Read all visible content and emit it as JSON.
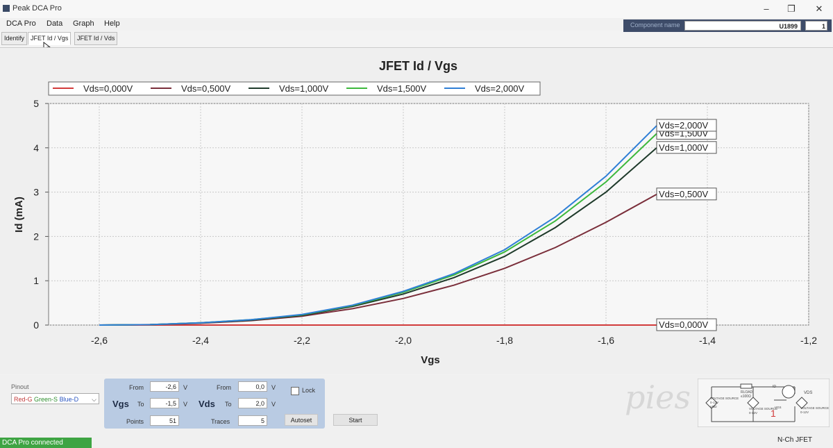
{
  "window": {
    "title": "Peak DCA Pro",
    "minimize": "–",
    "restore": "❐",
    "close": "✕"
  },
  "menu": [
    "DCA Pro",
    "Data",
    "Graph",
    "Help"
  ],
  "tabs": [
    "Identify",
    "JFET Id / Vgs",
    "JFET Id / Vds"
  ],
  "active_tab": 1,
  "component": {
    "label": "Component name",
    "value": "U1899",
    "count": "1"
  },
  "chart_data": {
    "type": "line",
    "title": "JFET Id / Vgs",
    "xlabel": "Vgs",
    "ylabel": "Id (mA)",
    "xlim": [
      -2.7,
      -1.2
    ],
    "ylim": [
      0,
      5
    ],
    "xticks": [
      -2.6,
      -2.4,
      -2.2,
      -2.0,
      -1.8,
      -1.6,
      -1.4,
      -1.2
    ],
    "xtick_labels": [
      "-2,6",
      "-2,4",
      "-2,2",
      "-2,0",
      "-1,8",
      "-1,6",
      "-1,4",
      "-1,2"
    ],
    "yticks": [
      0,
      1,
      2,
      3,
      4,
      5
    ],
    "ytick_labels": [
      "0",
      "1",
      "2",
      "3",
      "4",
      "5"
    ],
    "grid": true,
    "legend_position": "top",
    "x": [
      -2.6,
      -2.5,
      -2.4,
      -2.3,
      -2.2,
      -2.1,
      -2.0,
      -1.9,
      -1.8,
      -1.7,
      -1.6,
      -1.5
    ],
    "series": [
      {
        "name": "Vds=0,000V",
        "color": "#d23b3b",
        "values": [
          0,
          0,
          0,
          0,
          0,
          0,
          0,
          0,
          0,
          0,
          0,
          0
        ]
      },
      {
        "name": "Vds=0,500V",
        "color": "#7a2e3a",
        "values": [
          0,
          0.01,
          0.04,
          0.1,
          0.2,
          0.37,
          0.6,
          0.9,
          1.28,
          1.75,
          2.32,
          2.95
        ]
      },
      {
        "name": "Vds=1,000V",
        "color": "#1e3a2a",
        "values": [
          0,
          0.01,
          0.05,
          0.11,
          0.22,
          0.42,
          0.7,
          1.07,
          1.55,
          2.2,
          3.0,
          4.0
        ]
      },
      {
        "name": "Vds=1,500V",
        "color": "#3cb83c",
        "values": [
          0,
          0.01,
          0.05,
          0.12,
          0.23,
          0.44,
          0.74,
          1.13,
          1.65,
          2.35,
          3.23,
          4.32
        ]
      },
      {
        "name": "Vds=2,000V",
        "color": "#2f7fd6",
        "values": [
          0,
          0.01,
          0.05,
          0.12,
          0.24,
          0.45,
          0.76,
          1.16,
          1.7,
          2.44,
          3.36,
          4.5
        ]
      }
    ],
    "end_labels": [
      "Vds=0,000V",
      "Vds=0,500V",
      "Vds=1,000V",
      "Vds=1,500V",
      "Vds=2,000V"
    ]
  },
  "pinout": {
    "label": "Pinout",
    "red": "Red-G",
    "green": "Green-S",
    "blue": "Blue-D"
  },
  "params": {
    "vgs": {
      "name": "Vgs",
      "from_label": "From",
      "from": "-2,6",
      "to_label": "To",
      "to": "-1,5",
      "points_label": "Points",
      "points": "51",
      "unit": "V"
    },
    "vds": {
      "name": "Vds",
      "from_label": "From",
      "from": "0,0",
      "to_label": "To",
      "to": "2,0",
      "traces_label": "Traces",
      "traces": "5",
      "unit": "V"
    },
    "lock": "Lock",
    "autoset": "Autoset",
    "start": "Start"
  },
  "status": "DCA Pro connected",
  "device_type": "N-Ch JFET",
  "circuit": {
    "load": "RLOAD",
    "load_value": "≤100Ω",
    "source1": "VOLTAGE SOURCE",
    "source1_range": "0-12V",
    "source1_name": "VDD",
    "source2": "VOLTAGE SOURCE",
    "source2_range": "0-12V",
    "source2_name": "VGS",
    "source3": "VOLTAGE SOURCE",
    "source3_range": "0-12V",
    "vds": "VDS",
    "id": "ID",
    "marker": "1"
  },
  "watermark": "pies"
}
